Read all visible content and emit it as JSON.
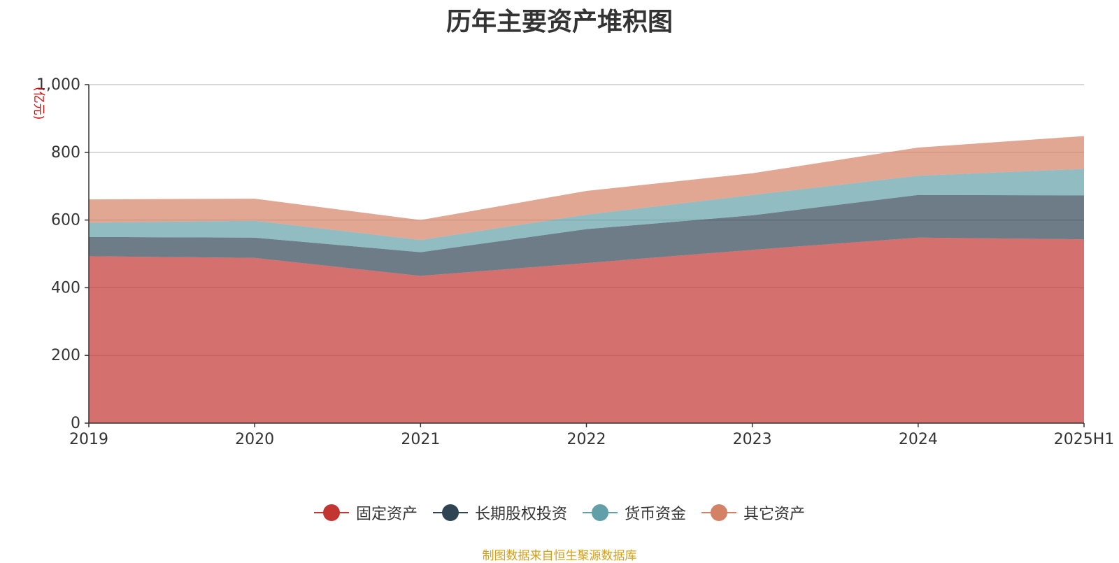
{
  "chart_data": {
    "type": "area",
    "stacked": true,
    "title": "历年主要资产堆积图",
    "unit": "(亿元)",
    "categories": [
      "2019",
      "2020",
      "2021",
      "2022",
      "2023",
      "2024",
      "2025H1"
    ],
    "ylim": [
      0,
      1000
    ],
    "yticks": [
      0,
      200,
      400,
      600,
      800,
      1000
    ],
    "ytick_labels": [
      "0",
      "200",
      "400",
      "600",
      "800",
      "1,000"
    ],
    "grid": true,
    "legend_position": "bottom",
    "series": [
      {
        "name": "固定资产",
        "color": "#c23531",
        "values": [
          493,
          488,
          435,
          473,
          512,
          548,
          543
        ]
      },
      {
        "name": "长期股权投资",
        "color": "#2f4554",
        "values": [
          57,
          60,
          70,
          100,
          102,
          126,
          130
        ]
      },
      {
        "name": "货币资金",
        "color": "#61a0a8",
        "values": [
          42,
          50,
          36,
          43,
          60,
          57,
          78
        ]
      },
      {
        "name": "其它资产",
        "color": "#d48265",
        "values": [
          69,
          65,
          59,
          70,
          64,
          83,
          97
        ]
      }
    ],
    "source": "制图数据来自恒生聚源数据库"
  }
}
